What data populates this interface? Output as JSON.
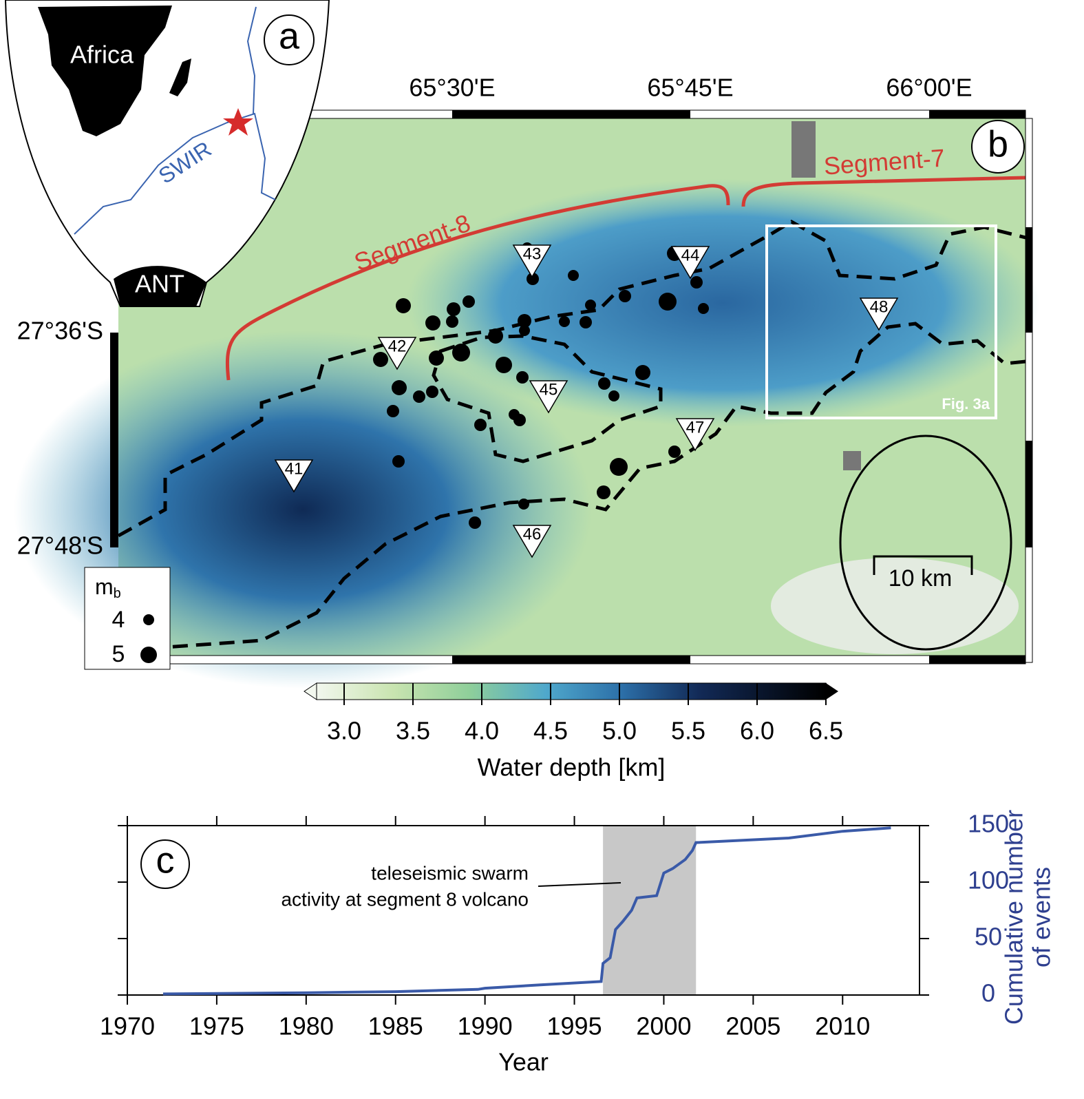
{
  "panel_a": {
    "label": "a",
    "continent": "Africa",
    "ridge": "SWIR",
    "antarctica": "ANT"
  },
  "panel_b": {
    "label": "b",
    "segments": [
      "Segment-8",
      "Segment-7"
    ],
    "inset_label": "Fig. 3a",
    "scale_bar": "10 km",
    "longitude_labels": [
      "65°30'E",
      "65°45'E",
      "66°00'E"
    ],
    "latitude_labels": [
      "27°36'S",
      "27°48'S"
    ],
    "stations": [
      "41",
      "42",
      "43",
      "44",
      "45",
      "46",
      "47",
      "48"
    ],
    "legend": {
      "title": "m",
      "title_sub": "b",
      "sizes": [
        "4",
        "5"
      ]
    }
  },
  "colorbar": {
    "label": "Water depth [km]",
    "lim": [
      2.8,
      6.5
    ],
    "ticks": [
      {
        "value": 3,
        "label": "3.0"
      },
      3.5,
      {
        "value": 4,
        "label": "4.0"
      },
      4.5,
      {
        "value": 5,
        "label": "5.0"
      },
      5.5,
      {
        "value": 6,
        "label": "6.0"
      },
      6.5
    ]
  },
  "chart_data": {
    "type": "line",
    "panel_label": "c",
    "xlabel": "Year",
    "y2label": [
      "Cumulative number",
      "of events"
    ],
    "annotation": [
      "teleseismic swarm",
      "activity at segment 8 volcano"
    ],
    "shaded_span": [
      1996.6,
      2001.8
    ],
    "xlim": [
      1970,
      2014.3
    ],
    "xticks": [
      1970,
      1975,
      1980,
      1985,
      1990,
      1995,
      2000,
      2005,
      2010
    ],
    "y2lim": [
      0,
      150
    ],
    "y2ticks": [
      0,
      50,
      100,
      150
    ],
    "series": [
      {
        "name": "Cumulative number of events",
        "color": "#3a5aa8",
        "axis": "y2",
        "x": [
          1972,
          1980,
          1985,
          1989.6,
          1990,
          1993.1,
          1996.5,
          1996.6,
          1997,
          1997.3,
          1997.7,
          1998.2,
          1998.5,
          1999.6,
          2000,
          2000.5,
          2001.2,
          2001.6,
          2001.8,
          2007,
          2010,
          2012.7
        ],
        "values": [
          1,
          2,
          3,
          5,
          6,
          9,
          12,
          28,
          33,
          58,
          65,
          75,
          86,
          88,
          108,
          112,
          120,
          128,
          135,
          139,
          145,
          148
        ]
      }
    ]
  }
}
